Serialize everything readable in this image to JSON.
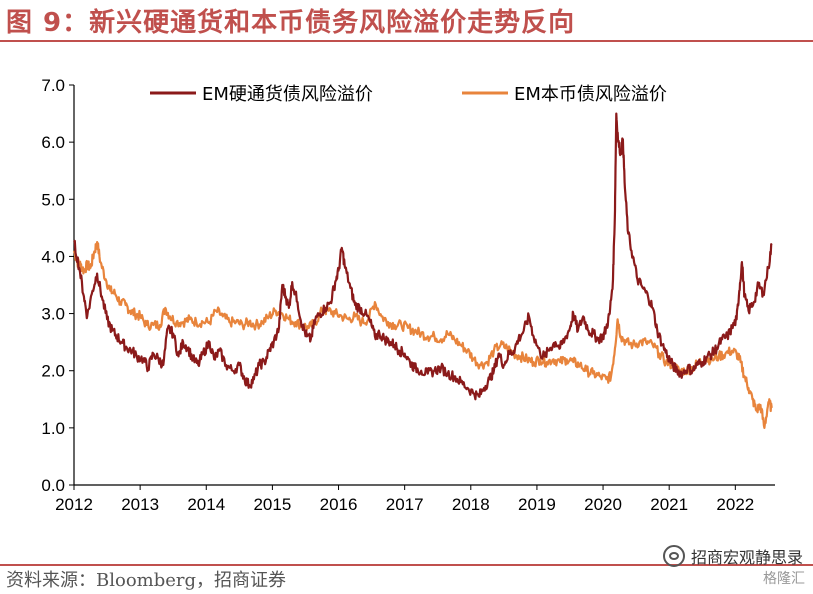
{
  "title": "图 9：新兴硬通货和本币债务风险溢价走势反向",
  "source": "资料来源：Bloomberg，招商证券",
  "watermark": "招商宏观静思录",
  "logo_text": "格隆汇",
  "colors": {
    "accent": "#C0504D",
    "series_hard": "#8B1A1A",
    "series_local": "#E8843C"
  },
  "chart_data": {
    "type": "line",
    "title": "",
    "xlabel": "",
    "ylabel": "",
    "xlim": [
      2012.0,
      2022.6
    ],
    "ylim": [
      0.0,
      7.0
    ],
    "y_ticks": [
      0.0,
      1.0,
      2.0,
      3.0,
      4.0,
      5.0,
      6.0,
      7.0
    ],
    "y_tick_labels": [
      "0.0",
      "1.0",
      "2.0",
      "3.0",
      "4.0",
      "5.0",
      "6.0",
      "7.0"
    ],
    "x_ticks": [
      2012,
      2013,
      2014,
      2015,
      2016,
      2017,
      2018,
      2019,
      2020,
      2021,
      2022
    ],
    "x_tick_labels": [
      "2012",
      "2013",
      "2014",
      "2015",
      "2016",
      "2017",
      "2018",
      "2019",
      "2020",
      "2021",
      "2022"
    ],
    "grid": false,
    "legend_position": "top",
    "series": [
      {
        "name": "EM硬通货债风险溢价",
        "color": "#8B1A1A",
        "points": [
          [
            2012.0,
            4.25
          ],
          [
            2012.08,
            3.8
          ],
          [
            2012.15,
            3.3
          ],
          [
            2012.2,
            2.95
          ],
          [
            2012.28,
            3.4
          ],
          [
            2012.35,
            3.7
          ],
          [
            2012.42,
            3.3
          ],
          [
            2012.5,
            2.9
          ],
          [
            2012.58,
            2.7
          ],
          [
            2012.65,
            2.6
          ],
          [
            2012.72,
            2.5
          ],
          [
            2012.8,
            2.4
          ],
          [
            2012.88,
            2.35
          ],
          [
            2012.95,
            2.25
          ],
          [
            2013.05,
            2.2
          ],
          [
            2013.12,
            2.05
          ],
          [
            2013.2,
            2.3
          ],
          [
            2013.28,
            2.2
          ],
          [
            2013.35,
            2.1
          ],
          [
            2013.42,
            2.75
          ],
          [
            2013.5,
            2.65
          ],
          [
            2013.58,
            2.25
          ],
          [
            2013.65,
            2.5
          ],
          [
            2013.72,
            2.4
          ],
          [
            2013.8,
            2.2
          ],
          [
            2013.88,
            2.1
          ],
          [
            2013.95,
            2.3
          ],
          [
            2014.05,
            2.5
          ],
          [
            2014.12,
            2.2
          ],
          [
            2014.2,
            2.35
          ],
          [
            2014.3,
            2.1
          ],
          [
            2014.4,
            2.0
          ],
          [
            2014.5,
            2.1
          ],
          [
            2014.58,
            1.85
          ],
          [
            2014.65,
            1.75
          ],
          [
            2014.72,
            1.85
          ],
          [
            2014.8,
            2.1
          ],
          [
            2014.88,
            2.15
          ],
          [
            2014.95,
            2.35
          ],
          [
            2015.02,
            2.5
          ],
          [
            2015.1,
            2.75
          ],
          [
            2015.15,
            3.5
          ],
          [
            2015.2,
            3.3
          ],
          [
            2015.25,
            3.1
          ],
          [
            2015.3,
            3.55
          ],
          [
            2015.38,
            3.2
          ],
          [
            2015.45,
            2.8
          ],
          [
            2015.52,
            2.6
          ],
          [
            2015.58,
            2.55
          ],
          [
            2015.65,
            2.9
          ],
          [
            2015.72,
            3.0
          ],
          [
            2015.8,
            3.1
          ],
          [
            2015.88,
            3.2
          ],
          [
            2015.95,
            3.55
          ],
          [
            2016.0,
            3.75
          ],
          [
            2016.05,
            4.15
          ],
          [
            2016.1,
            3.8
          ],
          [
            2016.18,
            3.45
          ],
          [
            2016.25,
            3.15
          ],
          [
            2016.32,
            3.1
          ],
          [
            2016.4,
            3.0
          ],
          [
            2016.48,
            2.85
          ],
          [
            2016.55,
            2.6
          ],
          [
            2016.62,
            2.65
          ],
          [
            2016.7,
            2.55
          ],
          [
            2016.78,
            2.5
          ],
          [
            2016.85,
            2.45
          ],
          [
            2016.92,
            2.35
          ],
          [
            2017.0,
            2.3
          ],
          [
            2017.08,
            2.15
          ],
          [
            2017.15,
            2.05
          ],
          [
            2017.25,
            2.0
          ],
          [
            2017.35,
            1.95
          ],
          [
            2017.45,
            2.0
          ],
          [
            2017.55,
            2.05
          ],
          [
            2017.65,
            1.95
          ],
          [
            2017.75,
            1.9
          ],
          [
            2017.85,
            1.8
          ],
          [
            2017.95,
            1.7
          ],
          [
            2018.05,
            1.6
          ],
          [
            2018.12,
            1.55
          ],
          [
            2018.2,
            1.7
          ],
          [
            2018.28,
            1.85
          ],
          [
            2018.35,
            2.0
          ],
          [
            2018.42,
            2.3
          ],
          [
            2018.5,
            2.1
          ],
          [
            2018.58,
            2.3
          ],
          [
            2018.65,
            2.35
          ],
          [
            2018.72,
            2.55
          ],
          [
            2018.8,
            2.7
          ],
          [
            2018.88,
            2.95
          ],
          [
            2018.95,
            2.6
          ],
          [
            2019.05,
            2.3
          ],
          [
            2019.12,
            2.25
          ],
          [
            2019.2,
            2.4
          ],
          [
            2019.28,
            2.5
          ],
          [
            2019.35,
            2.4
          ],
          [
            2019.42,
            2.55
          ],
          [
            2019.5,
            2.75
          ],
          [
            2019.55,
            3.0
          ],
          [
            2019.62,
            2.7
          ],
          [
            2019.7,
            2.95
          ],
          [
            2019.78,
            2.7
          ],
          [
            2019.85,
            2.65
          ],
          [
            2019.92,
            2.55
          ],
          [
            2020.0,
            2.6
          ],
          [
            2020.05,
            2.75
          ],
          [
            2020.1,
            3.0
          ],
          [
            2020.15,
            3.6
          ],
          [
            2020.18,
            4.8
          ],
          [
            2020.2,
            6.5
          ],
          [
            2020.23,
            6.0
          ],
          [
            2020.27,
            5.8
          ],
          [
            2020.3,
            6.05
          ],
          [
            2020.33,
            5.2
          ],
          [
            2020.38,
            4.4
          ],
          [
            2020.45,
            4.0
          ],
          [
            2020.52,
            3.6
          ],
          [
            2020.6,
            3.45
          ],
          [
            2020.68,
            3.3
          ],
          [
            2020.75,
            3.1
          ],
          [
            2020.82,
            2.7
          ],
          [
            2020.9,
            2.45
          ],
          [
            2020.98,
            2.25
          ],
          [
            2021.05,
            2.1
          ],
          [
            2021.12,
            2.0
          ],
          [
            2021.2,
            1.95
          ],
          [
            2021.28,
            2.05
          ],
          [
            2021.35,
            2.0
          ],
          [
            2021.42,
            2.1
          ],
          [
            2021.5,
            2.15
          ],
          [
            2021.58,
            2.25
          ],
          [
            2021.65,
            2.3
          ],
          [
            2021.72,
            2.4
          ],
          [
            2021.8,
            2.55
          ],
          [
            2021.88,
            2.6
          ],
          [
            2021.95,
            2.75
          ],
          [
            2022.02,
            2.9
          ],
          [
            2022.06,
            3.4
          ],
          [
            2022.1,
            3.9
          ],
          [
            2022.14,
            3.3
          ],
          [
            2022.2,
            3.05
          ],
          [
            2022.28,
            3.2
          ],
          [
            2022.35,
            3.5
          ],
          [
            2022.42,
            3.35
          ],
          [
            2022.5,
            3.8
          ],
          [
            2022.55,
            4.2
          ]
        ]
      },
      {
        "name": "EM本币债风险溢价",
        "color": "#E8843C",
        "points": [
          [
            2012.0,
            4.1
          ],
          [
            2012.05,
            3.9
          ],
          [
            2012.1,
            3.85
          ],
          [
            2012.15,
            3.75
          ],
          [
            2012.2,
            3.85
          ],
          [
            2012.25,
            3.8
          ],
          [
            2012.3,
            4.05
          ],
          [
            2012.35,
            4.25
          ],
          [
            2012.4,
            3.9
          ],
          [
            2012.48,
            3.6
          ],
          [
            2012.55,
            3.4
          ],
          [
            2012.62,
            3.35
          ],
          [
            2012.7,
            3.2
          ],
          [
            2012.78,
            3.15
          ],
          [
            2012.85,
            3.05
          ],
          [
            2012.92,
            3.0
          ],
          [
            2013.0,
            2.95
          ],
          [
            2013.1,
            2.8
          ],
          [
            2013.2,
            2.8
          ],
          [
            2013.3,
            2.8
          ],
          [
            2013.38,
            3.1
          ],
          [
            2013.45,
            2.95
          ],
          [
            2013.55,
            2.85
          ],
          [
            2013.65,
            2.85
          ],
          [
            2013.75,
            2.9
          ],
          [
            2013.85,
            2.85
          ],
          [
            2013.95,
            2.85
          ],
          [
            2014.05,
            2.85
          ],
          [
            2014.15,
            3.05
          ],
          [
            2014.25,
            2.95
          ],
          [
            2014.35,
            2.85
          ],
          [
            2014.45,
            2.85
          ],
          [
            2014.55,
            2.8
          ],
          [
            2014.65,
            2.85
          ],
          [
            2014.75,
            2.8
          ],
          [
            2014.85,
            2.85
          ],
          [
            2014.95,
            2.95
          ],
          [
            2015.05,
            3.05
          ],
          [
            2015.15,
            3.0
          ],
          [
            2015.25,
            2.9
          ],
          [
            2015.35,
            2.85
          ],
          [
            2015.45,
            2.8
          ],
          [
            2015.55,
            2.75
          ],
          [
            2015.65,
            2.85
          ],
          [
            2015.75,
            3.05
          ],
          [
            2015.85,
            3.05
          ],
          [
            2015.95,
            3.0
          ],
          [
            2016.05,
            2.95
          ],
          [
            2016.15,
            2.9
          ],
          [
            2016.25,
            2.95
          ],
          [
            2016.35,
            2.85
          ],
          [
            2016.45,
            2.9
          ],
          [
            2016.55,
            3.2
          ],
          [
            2016.65,
            2.95
          ],
          [
            2016.75,
            2.85
          ],
          [
            2016.85,
            2.8
          ],
          [
            2016.95,
            2.8
          ],
          [
            2017.05,
            2.75
          ],
          [
            2017.15,
            2.7
          ],
          [
            2017.25,
            2.65
          ],
          [
            2017.35,
            2.6
          ],
          [
            2017.45,
            2.6
          ],
          [
            2017.55,
            2.55
          ],
          [
            2017.65,
            2.65
          ],
          [
            2017.75,
            2.55
          ],
          [
            2017.85,
            2.45
          ],
          [
            2017.95,
            2.35
          ],
          [
            2018.05,
            2.2
          ],
          [
            2018.15,
            2.1
          ],
          [
            2018.25,
            2.15
          ],
          [
            2018.35,
            2.35
          ],
          [
            2018.45,
            2.45
          ],
          [
            2018.55,
            2.4
          ],
          [
            2018.65,
            2.3
          ],
          [
            2018.75,
            2.25
          ],
          [
            2018.85,
            2.2
          ],
          [
            2018.95,
            2.15
          ],
          [
            2019.05,
            2.2
          ],
          [
            2019.15,
            2.15
          ],
          [
            2019.25,
            2.2
          ],
          [
            2019.35,
            2.15
          ],
          [
            2019.45,
            2.2
          ],
          [
            2019.55,
            2.15
          ],
          [
            2019.65,
            2.1
          ],
          [
            2019.75,
            2.0
          ],
          [
            2019.85,
            1.95
          ],
          [
            2019.95,
            1.9
          ],
          [
            2020.05,
            1.85
          ],
          [
            2020.12,
            1.9
          ],
          [
            2020.18,
            2.4
          ],
          [
            2020.22,
            2.9
          ],
          [
            2020.27,
            2.6
          ],
          [
            2020.35,
            2.5
          ],
          [
            2020.45,
            2.45
          ],
          [
            2020.55,
            2.5
          ],
          [
            2020.65,
            2.5
          ],
          [
            2020.75,
            2.45
          ],
          [
            2020.85,
            2.3
          ],
          [
            2020.95,
            2.15
          ],
          [
            2021.05,
            2.1
          ],
          [
            2021.15,
            2.0
          ],
          [
            2021.25,
            2.0
          ],
          [
            2021.35,
            2.05
          ],
          [
            2021.45,
            2.15
          ],
          [
            2021.55,
            2.2
          ],
          [
            2021.65,
            2.2
          ],
          [
            2021.75,
            2.25
          ],
          [
            2021.85,
            2.3
          ],
          [
            2021.95,
            2.35
          ],
          [
            2022.02,
            2.3
          ],
          [
            2022.08,
            2.15
          ],
          [
            2022.14,
            1.9
          ],
          [
            2022.2,
            1.7
          ],
          [
            2022.26,
            1.5
          ],
          [
            2022.32,
            1.3
          ],
          [
            2022.38,
            1.4
          ],
          [
            2022.44,
            1.0
          ],
          [
            2022.5,
            1.45
          ],
          [
            2022.55,
            1.35
          ]
        ]
      }
    ]
  }
}
